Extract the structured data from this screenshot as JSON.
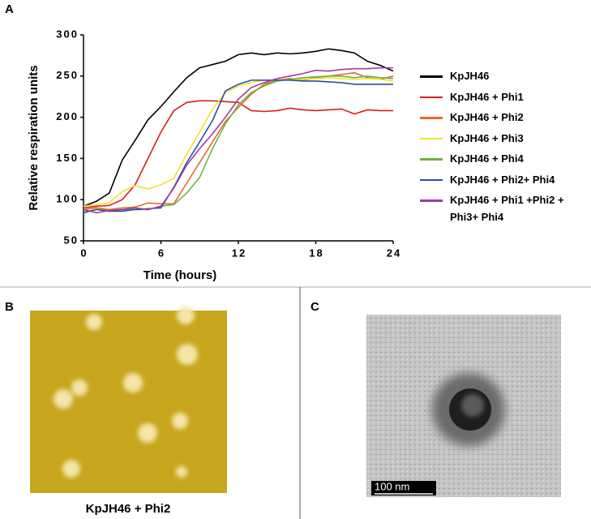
{
  "chart_data": {
    "type": "line",
    "x_label": "Time (hours)",
    "y_label": "Relative respiration units",
    "x": [
      0,
      1,
      2,
      3,
      4,
      5,
      6,
      7,
      8,
      9,
      10,
      11,
      12,
      13,
      14,
      15,
      16,
      17,
      18,
      19,
      20,
      21,
      22,
      23,
      24
    ],
    "xlim": [
      0,
      24
    ],
    "xticks": [
      0,
      6,
      12,
      18,
      24
    ],
    "ylim": [
      50,
      300
    ],
    "yticks": [
      50,
      100,
      150,
      200,
      250,
      300
    ],
    "legend": "right",
    "series": [
      {
        "name": "KpJH46",
        "color": "#000000",
        "values": [
          92,
          98,
          108,
          148,
          172,
          197,
          213,
          231,
          248,
          260,
          264,
          268,
          276,
          278,
          276,
          278,
          277,
          278,
          280,
          283,
          281,
          278,
          268,
          263,
          256
        ]
      },
      {
        "name": "KpJH46 + Phi1",
        "color": "#d62020",
        "values": [
          90,
          92,
          93,
          100,
          118,
          150,
          182,
          208,
          218,
          220,
          220,
          219,
          218,
          208,
          207,
          208,
          211,
          209,
          208,
          209,
          210,
          204,
          209,
          208,
          208
        ]
      },
      {
        "name": "KpJH46 + Phi2",
        "color": "#e8692a",
        "values": [
          88,
          90,
          88,
          90,
          91,
          96,
          95,
          95,
          120,
          145,
          170,
          195,
          212,
          228,
          240,
          245,
          247,
          245,
          248,
          250,
          252,
          254,
          248,
          246,
          250
        ]
      },
      {
        "name": "KpJH46 + Phi3",
        "color": "#f2e22a",
        "values": [
          92,
          94,
          96,
          110,
          117,
          113,
          118,
          126,
          155,
          182,
          210,
          230,
          238,
          242,
          245,
          245,
          246,
          246,
          247,
          248,
          247,
          246,
          247,
          246,
          244
        ]
      },
      {
        "name": "KpJH46 + Phi4",
        "color": "#6db33f",
        "values": [
          85,
          88,
          87,
          88,
          88,
          88,
          92,
          94,
          108,
          127,
          162,
          192,
          215,
          230,
          238,
          244,
          246,
          248,
          249,
          250,
          250,
          248,
          250,
          248,
          247
        ]
      },
      {
        "name": "KpJH46 + Phi2+ Phi4",
        "color": "#2b4ea2",
        "values": [
          84,
          88,
          86,
          86,
          88,
          89,
          90,
          115,
          145,
          170,
          196,
          232,
          240,
          245,
          245,
          245,
          245,
          244,
          244,
          243,
          242,
          240,
          240,
          240,
          240
        ]
      },
      {
        "name": "KpJH46 + Phi1 +Phi2 + Phi3+ Phi4",
        "color": "#a03ca0",
        "values": [
          88,
          84,
          87,
          88,
          90,
          88,
          92,
          114,
          142,
          162,
          180,
          200,
          222,
          236,
          242,
          247,
          250,
          253,
          257,
          256,
          258,
          259,
          259,
          260,
          260
        ]
      }
    ]
  },
  "panels": {
    "a": {
      "label": "A"
    },
    "b": {
      "label": "B",
      "caption": "KpJH46 + Phi2"
    },
    "c": {
      "label": "C",
      "scale_bar": "100 nm"
    }
  }
}
